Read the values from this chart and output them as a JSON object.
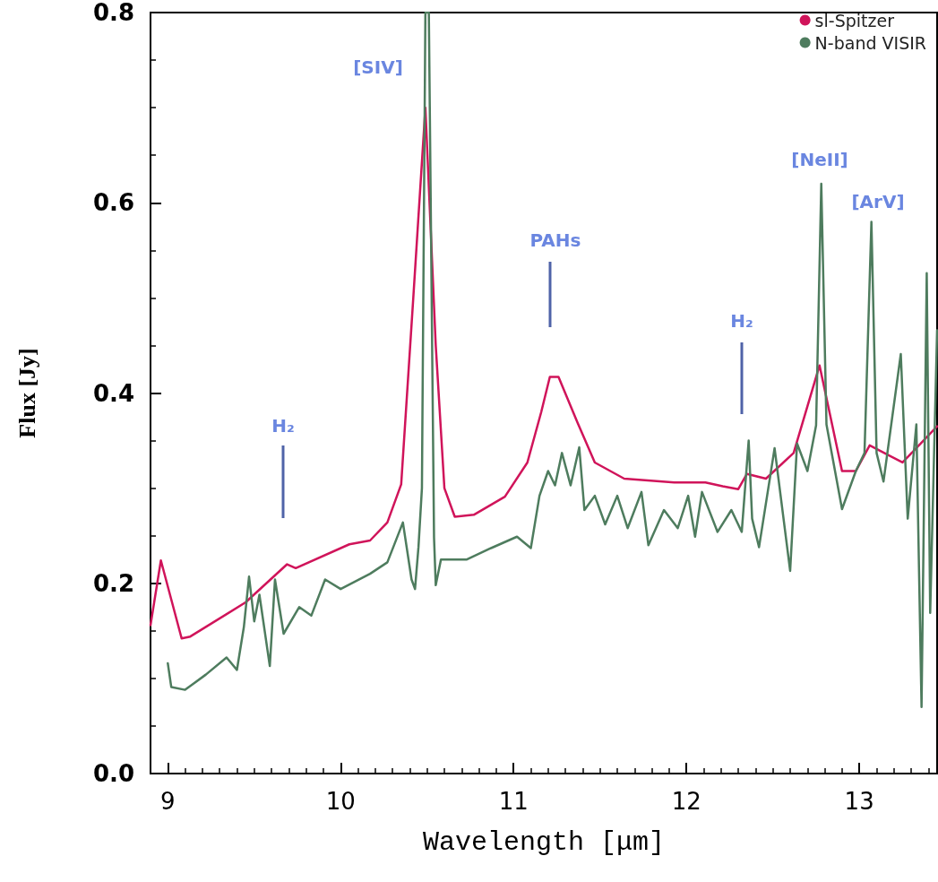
{
  "chart_data": {
    "type": "line",
    "xlabel": "Wavelength [μm]",
    "ylabel": "Flux [Jy]",
    "xlim": [
      8.9,
      13.45
    ],
    "xticks": [
      9,
      10,
      11,
      12,
      13
    ],
    "ylim": [
      0,
      0.8
    ],
    "yticks": [
      {
        "value": 0,
        "label": "0.0"
      },
      0.2,
      0.4,
      0.6,
      0.8
    ],
    "grid": false,
    "legend": "top right",
    "line_style": "solid",
    "series": [
      {
        "name": "sl-Spitzer",
        "color": "#d0145a",
        "x": [
          8.9,
          8.96,
          9.08,
          9.13,
          9.45,
          9.69,
          9.74,
          10.05,
          10.17,
          10.27,
          10.35,
          10.42,
          10.49,
          10.55,
          10.6,
          10.66,
          10.77,
          10.95,
          11.08,
          11.16,
          11.21,
          11.26,
          11.37,
          11.47,
          11.64,
          11.93,
          12.11,
          12.21,
          12.3,
          12.35,
          12.46,
          12.62,
          12.77,
          12.9,
          12.98,
          13.06,
          13.25,
          13.45
        ],
        "values": [
          0.156,
          0.224,
          0.142,
          0.144,
          0.18,
          0.22,
          0.216,
          0.241,
          0.245,
          0.264,
          0.304,
          0.5,
          0.7,
          0.45,
          0.3,
          0.27,
          0.272,
          0.291,
          0.327,
          0.38,
          0.417,
          0.417,
          0.369,
          0.327,
          0.31,
          0.306,
          0.306,
          0.302,
          0.299,
          0.315,
          0.31,
          0.337,
          0.429,
          0.318,
          0.318,
          0.345,
          0.327,
          0.365
        ]
      },
      {
        "name": "N-band VISIR",
        "color": "#4e7c5e",
        "x": [
          9.0,
          9.02,
          9.1,
          9.22,
          9.34,
          9.4,
          9.44,
          9.47,
          9.5,
          9.53,
          9.59,
          9.62,
          9.67,
          9.76,
          9.83,
          9.91,
          10.0,
          10.17,
          10.27,
          10.36,
          10.41,
          10.43,
          10.45,
          10.47,
          10.49,
          10.51,
          10.54,
          10.55,
          10.58,
          10.73,
          10.87,
          11.02,
          11.1,
          11.15,
          11.2,
          11.24,
          11.28,
          11.33,
          11.38,
          11.41,
          11.47,
          11.53,
          11.6,
          11.66,
          11.74,
          11.78,
          11.87,
          11.95,
          12.01,
          12.05,
          12.09,
          12.18,
          12.26,
          12.32,
          12.36,
          12.38,
          12.42,
          12.51,
          12.6,
          12.64,
          12.7,
          12.75,
          12.78,
          12.81,
          12.9,
          12.98,
          13.03,
          13.07,
          13.1,
          13.14,
          13.24,
          13.28,
          13.33,
          13.36,
          13.39,
          13.41,
          13.45
        ],
        "values": [
          0.116,
          0.091,
          0.088,
          0.104,
          0.122,
          0.109,
          0.154,
          0.207,
          0.16,
          0.188,
          0.113,
          0.204,
          0.147,
          0.175,
          0.166,
          0.204,
          0.194,
          0.21,
          0.222,
          0.264,
          0.204,
          0.194,
          0.238,
          0.3,
          0.8,
          0.8,
          0.248,
          0.198,
          0.225,
          0.225,
          0.237,
          0.249,
          0.237,
          0.292,
          0.318,
          0.303,
          0.337,
          0.303,
          0.343,
          0.277,
          0.292,
          0.262,
          0.292,
          0.258,
          0.296,
          0.24,
          0.277,
          0.258,
          0.292,
          0.249,
          0.296,
          0.254,
          0.277,
          0.254,
          0.35,
          0.268,
          0.238,
          0.342,
          0.213,
          0.347,
          0.318,
          0.366,
          0.62,
          0.367,
          0.278,
          0.318,
          0.337,
          0.58,
          0.337,
          0.307,
          0.441,
          0.268,
          0.367,
          0.07,
          0.526,
          0.169,
          0.466
        ]
      }
    ],
    "annotations": [
      "[SIV]",
      "H₂",
      "PAHs",
      "H₂",
      "[NeII]",
      "[ArV]"
    ]
  }
}
